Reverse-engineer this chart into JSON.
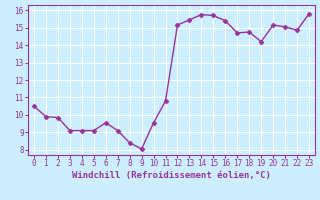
{
  "x": [
    0,
    1,
    2,
    3,
    4,
    5,
    6,
    7,
    8,
    9,
    10,
    11,
    12,
    13,
    14,
    15,
    16,
    17,
    18,
    19,
    20,
    21,
    22,
    23
  ],
  "y": [
    10.5,
    9.9,
    9.85,
    9.1,
    9.1,
    9.1,
    9.55,
    9.1,
    8.4,
    8.05,
    9.55,
    10.8,
    15.15,
    15.45,
    15.75,
    15.7,
    15.4,
    14.7,
    14.75,
    14.2,
    15.15,
    15.05,
    14.85,
    15.8
  ],
  "line_color": "#993399",
  "marker": "D",
  "markersize": 2.5,
  "linewidth": 1.0,
  "xlabel": "Windchill (Refroidissement éolien,°C)",
  "bg_color": "#cceeff",
  "grid_color": "#ffffff",
  "tick_color": "#993399",
  "label_color": "#993399",
  "xlim": [
    -0.5,
    23.5
  ],
  "ylim": [
    7.7,
    16.3
  ],
  "yticks": [
    8,
    9,
    10,
    11,
    12,
    13,
    14,
    15,
    16
  ],
  "xticks": [
    0,
    1,
    2,
    3,
    4,
    5,
    6,
    7,
    8,
    9,
    10,
    11,
    12,
    13,
    14,
    15,
    16,
    17,
    18,
    19,
    20,
    21,
    22,
    23
  ]
}
